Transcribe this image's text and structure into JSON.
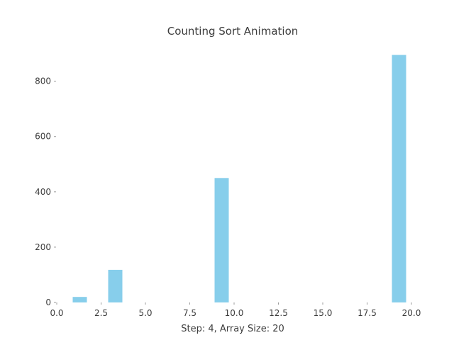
{
  "chart_data": {
    "type": "bar",
    "title": "Counting Sort Animation",
    "xlabel": "Step: 4, Array Size: 20",
    "ylabel": "",
    "bar_color": "#87ceeb",
    "text_color": "#3c3c3c",
    "xlim": [
      0,
      20
    ],
    "ylim": [
      0,
      940
    ],
    "xticks": [
      0,
      2.5,
      5,
      7.5,
      10,
      12.5,
      15,
      17.5,
      20
    ],
    "xtick_labels": [
      "0.0",
      "2.5",
      "5.0",
      "7.5",
      "10.0",
      "12.5",
      "15.0",
      "17.5",
      "20.0"
    ],
    "yticks": [
      0,
      200,
      400,
      600,
      800
    ],
    "ytick_labels": [
      "0",
      "200",
      "400",
      "600",
      "800"
    ],
    "bar_width": 0.8,
    "bars": [
      {
        "x": 1.3,
        "value": 20
      },
      {
        "x": 3.3,
        "value": 118
      },
      {
        "x": 9.3,
        "value": 450
      },
      {
        "x": 19.3,
        "value": 895
      }
    ],
    "grid": false,
    "legend": "none"
  }
}
